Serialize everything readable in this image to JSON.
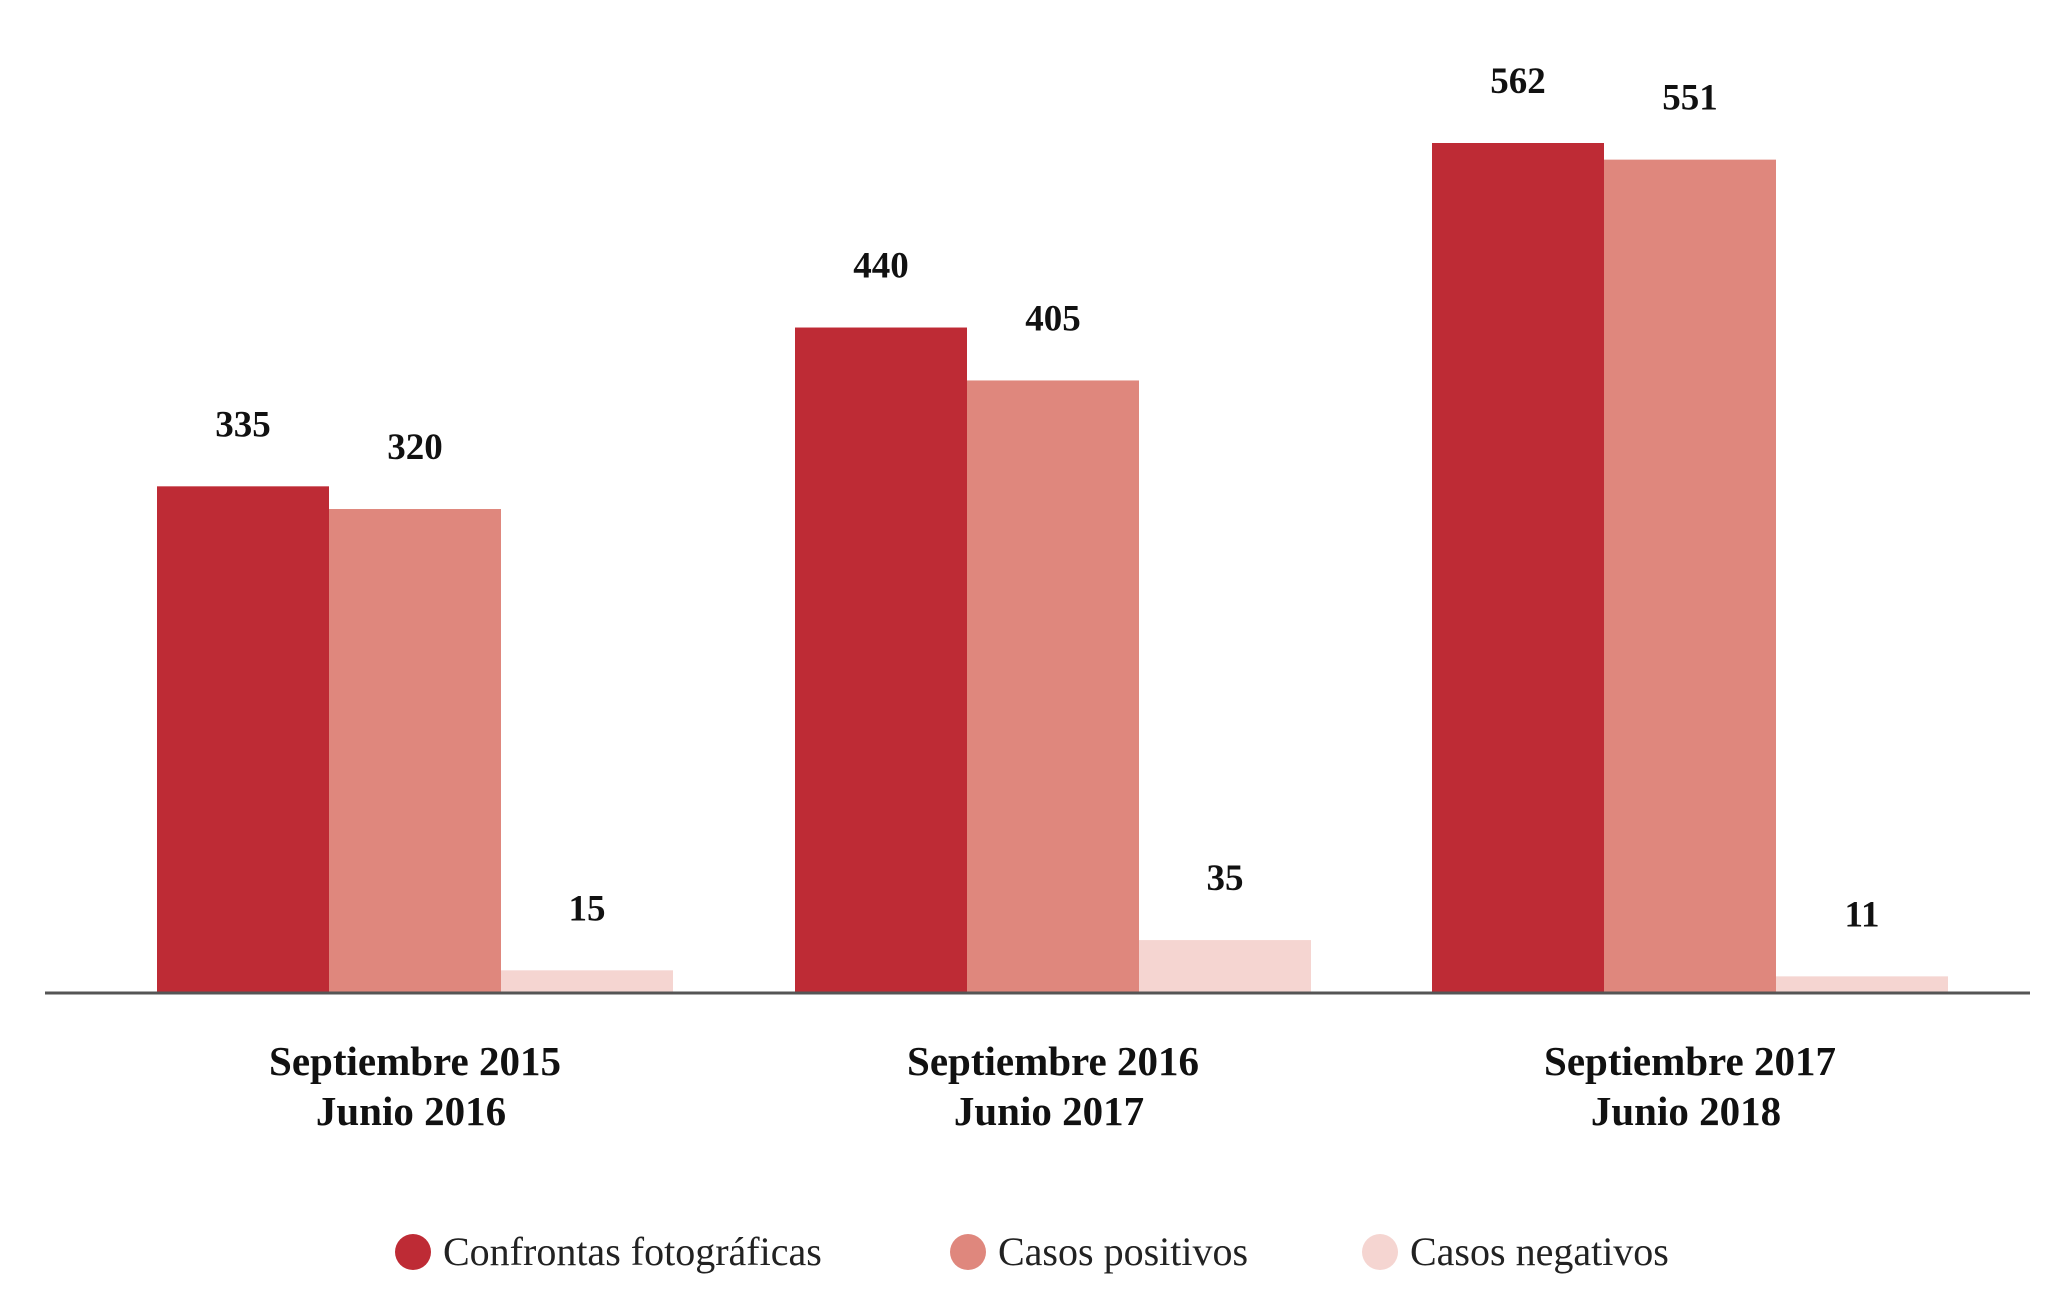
{
  "chart_data": {
    "type": "bar",
    "categories": [
      [
        "Septiembre 2015",
        "Junio 2016"
      ],
      [
        "Septiembre 2016",
        "Junio 2017"
      ],
      [
        "Septiembre 2017",
        "Junio 2018"
      ]
    ],
    "series": [
      {
        "name": "Confrontas fotográficas",
        "values": [
          335,
          440,
          562
        ],
        "color": "#BE2B35"
      },
      {
        "name": "Casos positivos",
        "values": [
          320,
          405,
          551
        ],
        "color": "#DF877D"
      },
      {
        "name": "Casos negativos",
        "values": [
          15,
          35,
          11
        ],
        "color": "#F5D5D1"
      }
    ],
    "title": "",
    "xlabel": "",
    "ylabel": "",
    "ylim": [
      0,
      562
    ],
    "grid": false,
    "legend_position": "bottom",
    "axis_color": "#555555"
  }
}
